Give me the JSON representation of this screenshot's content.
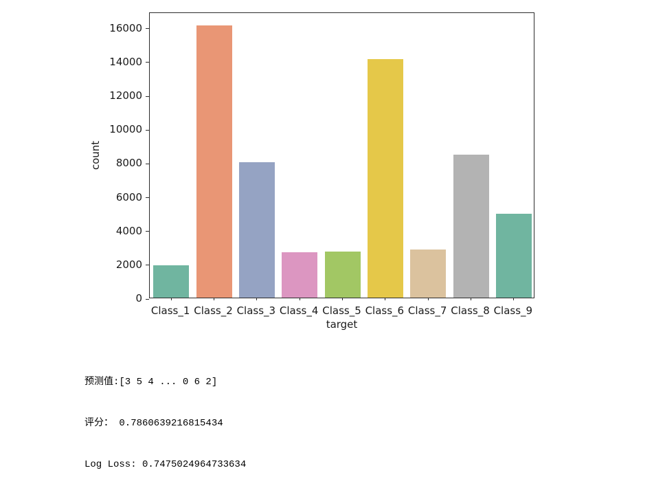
{
  "chart_data": {
    "type": "bar",
    "title": "",
    "xlabel": "target",
    "ylabel": "count",
    "categories": [
      "Class_1",
      "Class_2",
      "Class_3",
      "Class_4",
      "Class_5",
      "Class_6",
      "Class_7",
      "Class_8",
      "Class_9"
    ],
    "values": [
      1929,
      16122,
      8004,
      2691,
      2739,
      14135,
      2839,
      8464,
      4955
    ],
    "bar_colors": [
      "#70b5a0",
      "#e99675",
      "#95a3c3",
      "#dc96c1",
      "#a2c764",
      "#e5c849",
      "#dbc29e",
      "#b3b3b3",
      "#70b5a0"
    ],
    "yticks": [
      0,
      2000,
      4000,
      6000,
      8000,
      10000,
      12000,
      14000,
      16000
    ],
    "ylim": [
      0,
      16928
    ],
    "grid": false,
    "legend": null,
    "frame_color": "#2b2b2b"
  },
  "console_output": {
    "lines": [
      "预测值:[3 5 4 ... 0 6 2]",
      "评分： 0.7860639216815434",
      "Log Loss: 0.7475024964733634"
    ]
  }
}
